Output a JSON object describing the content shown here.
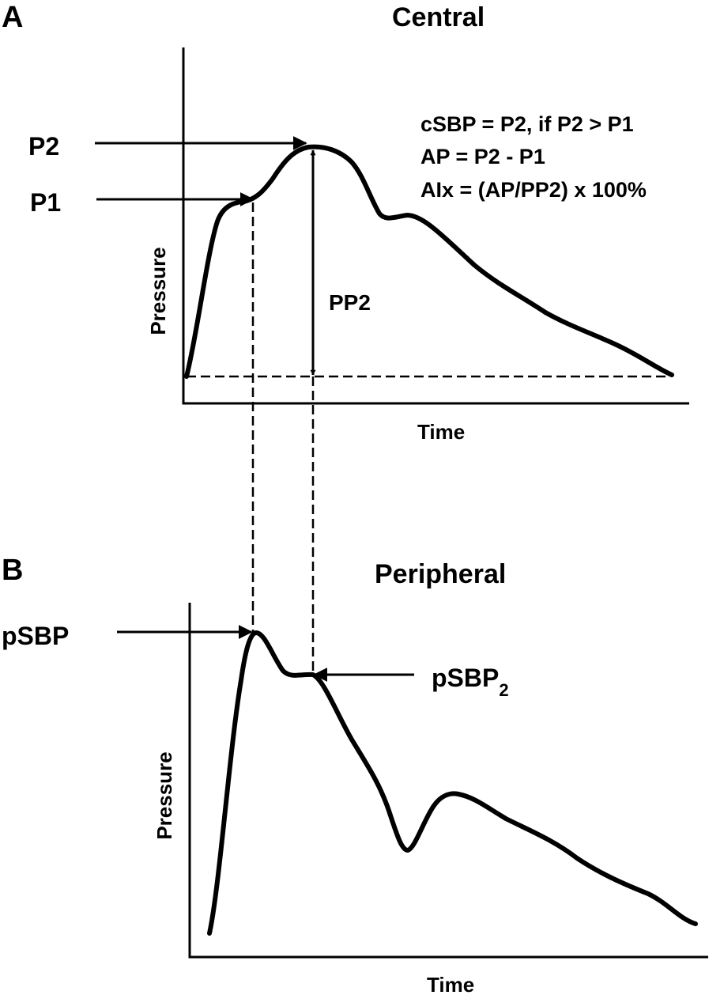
{
  "panel_a": {
    "letter": "A",
    "title": "Central",
    "labels": {
      "p2": "P2",
      "p1": "P1",
      "pp2": "PP2",
      "y_axis": "Pressure",
      "x_axis": "Time"
    },
    "formulas": [
      "cSBP = P2, if P2 > P1",
      "AP = P2 - P1",
      "AIx = (AP/PP2) x 100%"
    ]
  },
  "panel_b": {
    "letter": "B",
    "title": "Peripheral",
    "labels": {
      "psbp": "pSBP",
      "psbp2_base": "pSBP",
      "psbp2_sub": "2",
      "y_axis": "Pressure",
      "x_axis": "Time"
    }
  },
  "colors": {
    "ink": "#000000",
    "background": "#ffffff"
  }
}
